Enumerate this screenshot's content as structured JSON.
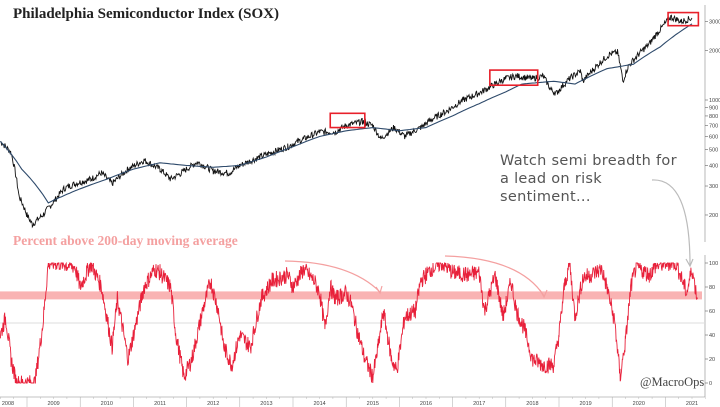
{
  "chart_data": [
    {
      "type": "line",
      "title": "Philadelphia Semiconductor Index (SOX)",
      "yscale": "log",
      "ylim": [
        100,
        3600
      ],
      "yticks": [
        200,
        300,
        400,
        500,
        600,
        700,
        800,
        900,
        1000,
        2000,
        3000
      ],
      "xlim": [
        2008.49,
        2021.75
      ],
      "series": [
        {
          "name": "SOX",
          "color": "#111111",
          "x": [
            2008.5,
            2008.7,
            2008.85,
            2009.0,
            2009.1,
            2009.3,
            2009.5,
            2009.7,
            2009.9,
            2010.2,
            2010.4,
            2010.6,
            2010.9,
            2011.2,
            2011.5,
            2011.7,
            2011.9,
            2012.2,
            2012.5,
            2012.8,
            2013.0,
            2013.3,
            2013.6,
            2013.9,
            2014.2,
            2014.5,
            2014.8,
            2015.0,
            2015.3,
            2015.5,
            2015.65,
            2015.9,
            2016.1,
            2016.4,
            2016.6,
            2016.9,
            2017.2,
            2017.5,
            2017.8,
            2018.0,
            2018.2,
            2018.5,
            2018.7,
            2018.85,
            2018.95,
            2019.2,
            2019.4,
            2019.45,
            2019.7,
            2019.95,
            2020.1,
            2020.2,
            2020.3,
            2020.5,
            2020.7,
            2020.95,
            2021.1,
            2021.3,
            2021.5
          ],
          "y": [
            560,
            480,
            260,
            200,
            175,
            200,
            240,
            290,
            310,
            330,
            360,
            310,
            380,
            430,
            380,
            330,
            360,
            420,
            370,
            360,
            400,
            440,
            480,
            520,
            580,
            640,
            640,
            700,
            740,
            700,
            580,
            680,
            600,
            680,
            760,
            860,
            1000,
            1100,
            1250,
            1350,
            1400,
            1350,
            1400,
            1150,
            1100,
            1350,
            1500,
            1300,
            1600,
            1900,
            1950,
            1300,
            1600,
            1900,
            2200,
            2800,
            3200,
            3000,
            3150
          ]
        },
        {
          "name": "200-day moving average",
          "color": "#2e4a6b",
          "x": [
            2008.5,
            2008.9,
            2009.4,
            2009.9,
            2010.5,
            2011.0,
            2011.5,
            2012.0,
            2012.5,
            2013.0,
            2013.5,
            2014.0,
            2014.5,
            2015.0,
            2015.5,
            2016.0,
            2016.5,
            2017.0,
            2017.5,
            2018.0,
            2018.3,
            2018.9,
            2019.3,
            2019.9,
            2020.4,
            2020.9,
            2021.2,
            2021.5
          ],
          "y": [
            560,
            380,
            237,
            280,
            330,
            380,
            415,
            400,
            390,
            400,
            450,
            520,
            600,
            650,
            680,
            650,
            680,
            800,
            950,
            1120,
            1250,
            1300,
            1250,
            1550,
            1650,
            2100,
            2500,
            2900
          ]
        }
      ],
      "highlights": [
        {
          "label": "box-2015",
          "x": [
            2014.7,
            2015.35
          ],
          "y": [
            680,
            830
          ]
        },
        {
          "label": "box-2018",
          "x": [
            2017.7,
            2018.6
          ],
          "y": [
            1230,
            1520
          ]
        },
        {
          "label": "box-2021",
          "x": [
            2021.05,
            2021.62
          ],
          "y": [
            2830,
            3400
          ]
        }
      ],
      "annotation": "Watch semi breadth for a lead on risk sentiment..."
    },
    {
      "type": "line",
      "title": "Percent above 200-day moving average",
      "ylim": [
        0,
        100
      ],
      "yticks": [
        0,
        20,
        40,
        60,
        80,
        100
      ],
      "threshold_band": 73,
      "reference_line": 50,
      "series": [
        {
          "name": "Percent above 200-day MA",
          "color": "#e8203a",
          "x": [
            2008.5,
            2008.6,
            2008.7,
            2008.8,
            2008.9,
            2009.15,
            2009.3,
            2009.4,
            2009.6,
            2009.9,
            2010.0,
            2010.2,
            2010.4,
            2010.5,
            2010.6,
            2010.7,
            2010.9,
            2011.0,
            2011.2,
            2011.4,
            2011.5,
            2011.7,
            2011.8,
            2011.95,
            2012.1,
            2012.3,
            2012.45,
            2012.6,
            2012.7,
            2012.85,
            2013.0,
            2013.2,
            2013.4,
            2013.6,
            2013.9,
            2014.0,
            2014.2,
            2014.4,
            2014.5,
            2014.6,
            2014.7,
            2014.8,
            2015.0,
            2015.1,
            2015.2,
            2015.35,
            2015.5,
            2015.6,
            2015.7,
            2015.85,
            2015.95,
            2016.1,
            2016.3,
            2016.4,
            2016.6,
            2016.8,
            2017.0,
            2017.3,
            2017.5,
            2017.6,
            2017.8,
            2017.95,
            2018.1,
            2018.2,
            2018.35,
            2018.5,
            2018.7,
            2018.9,
            2019.0,
            2019.1,
            2019.2,
            2019.3,
            2019.45,
            2019.6,
            2019.8,
            2019.9,
            2020.05,
            2020.15,
            2020.25,
            2020.35,
            2020.45,
            2020.7,
            2020.8,
            2021.0,
            2021.2,
            2021.4,
            2021.5,
            2021.6
          ],
          "y": [
            40,
            55,
            20,
            0,
            0,
            0,
            50,
            100,
            100,
            97,
            80,
            100,
            80,
            55,
            30,
            70,
            20,
            40,
            80,
            95,
            92,
            80,
            40,
            5,
            20,
            60,
            85,
            60,
            30,
            15,
            40,
            30,
            70,
            85,
            90,
            80,
            95,
            85,
            75,
            45,
            80,
            70,
            75,
            65,
            45,
            20,
            5,
            30,
            60,
            20,
            10,
            55,
            60,
            85,
            95,
            100,
            92,
            90,
            92,
            60,
            90,
            55,
            85,
            60,
            45,
            20,
            15,
            15,
            40,
            80,
            100,
            55,
            88,
            90,
            95,
            80,
            50,
            5,
            35,
            80,
            97,
            90,
            97,
            100,
            100,
            75,
            95,
            70
          ]
        }
      ],
      "xticks": [
        "2008",
        "2009",
        "2010",
        "2011",
        "2012",
        "2013",
        "2014",
        "2015",
        "2016",
        "2017",
        "2018",
        "2019",
        "2020",
        "2021"
      ]
    }
  ],
  "credit": "@MacroOps"
}
